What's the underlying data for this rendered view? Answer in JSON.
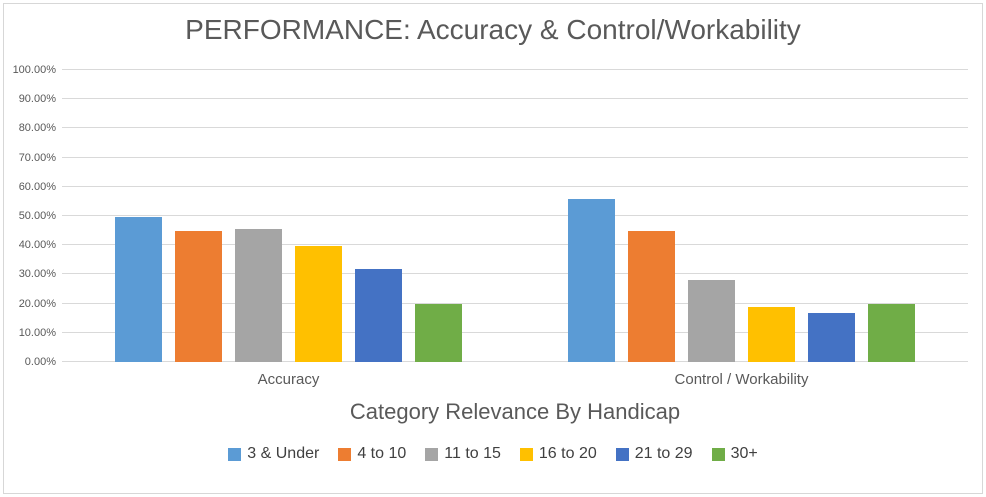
{
  "chart_data": {
    "type": "bar",
    "title": "PERFORMANCE: Accuracy & Control/Workability",
    "xlabel": "Category Relevance By Handicap",
    "ylabel": "",
    "categories": [
      "Accuracy",
      "Control / Workability"
    ],
    "series": [
      {
        "name": "3 & Under",
        "color": "#5B9BD5",
        "values": [
          49.5,
          55.7
        ]
      },
      {
        "name": "4 to 10",
        "color": "#ED7D31",
        "values": [
          44.8,
          44.8
        ]
      },
      {
        "name": "11 to 15",
        "color": "#A5A5A5",
        "values": [
          45.6,
          28.2
        ]
      },
      {
        "name": "16 to 20",
        "color": "#FFC000",
        "values": [
          39.9,
          18.7
        ]
      },
      {
        "name": "21 to 29",
        "color": "#4472C4",
        "values": [
          31.8,
          16.8
        ]
      },
      {
        "name": "30+",
        "color": "#70AD47",
        "values": [
          19.9,
          20.0
        ]
      }
    ],
    "ylim": [
      0,
      100
    ],
    "ytick_labels": [
      "0.00%",
      "10.00%",
      "20.00%",
      "30.00%",
      "40.00%",
      "50.00%",
      "60.00%",
      "70.00%",
      "80.00%",
      "90.00%",
      "100.00%"
    ],
    "grid": true,
    "legend_position": "bottom"
  },
  "colors": {
    "title_text": "#595959",
    "axis_text": "#595959",
    "legend_text": "#404040",
    "gridline": "#D9D9D9",
    "chart_border": "#D7D7D7",
    "background": "#FFFFFF"
  }
}
